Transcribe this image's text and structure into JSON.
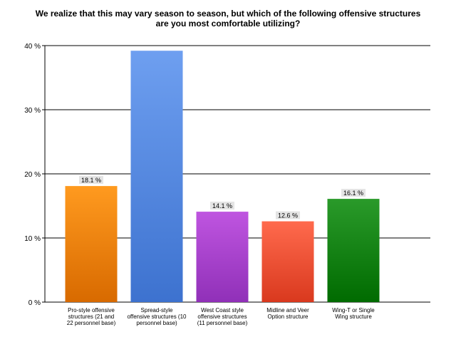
{
  "chart_data": {
    "type": "bar",
    "title": [
      "We realize that this may vary season to season, but which of the following offensive structures",
      "are you most comfortable utilizing?"
    ],
    "categories": [
      [
        "Pro-style offensive",
        "structures (21 and",
        "22 personnel base)"
      ],
      [
        "Spread-style",
        "offensive structures (10",
        "personnel base)"
      ],
      [
        "West Coast style",
        "offensive structures",
        "(11 personnel base)"
      ],
      [
        "Midline and Veer",
        "Option structure"
      ],
      [
        "Wing-T or Single",
        "Wing structure"
      ]
    ],
    "values": [
      18.1,
      39.2,
      14.1,
      12.6,
      16.1
    ],
    "data_labels": [
      "18.1 %",
      "",
      "14.1 %",
      "12.6 %",
      "16.1 %"
    ],
    "yticks": [
      "0 %",
      "10 %",
      "20 %",
      "30 %",
      "40 %"
    ],
    "ylim": [
      0,
      40
    ],
    "grid": true,
    "colors": [
      [
        "#ff9a1f",
        "#d86a00"
      ],
      [
        "#6e9ff0",
        "#3d72cf"
      ],
      [
        "#bf55e0",
        "#9030b8"
      ],
      [
        "#ff6a4d",
        "#d9391e"
      ],
      [
        "#2a9a2a",
        "#006b00"
      ]
    ]
  }
}
